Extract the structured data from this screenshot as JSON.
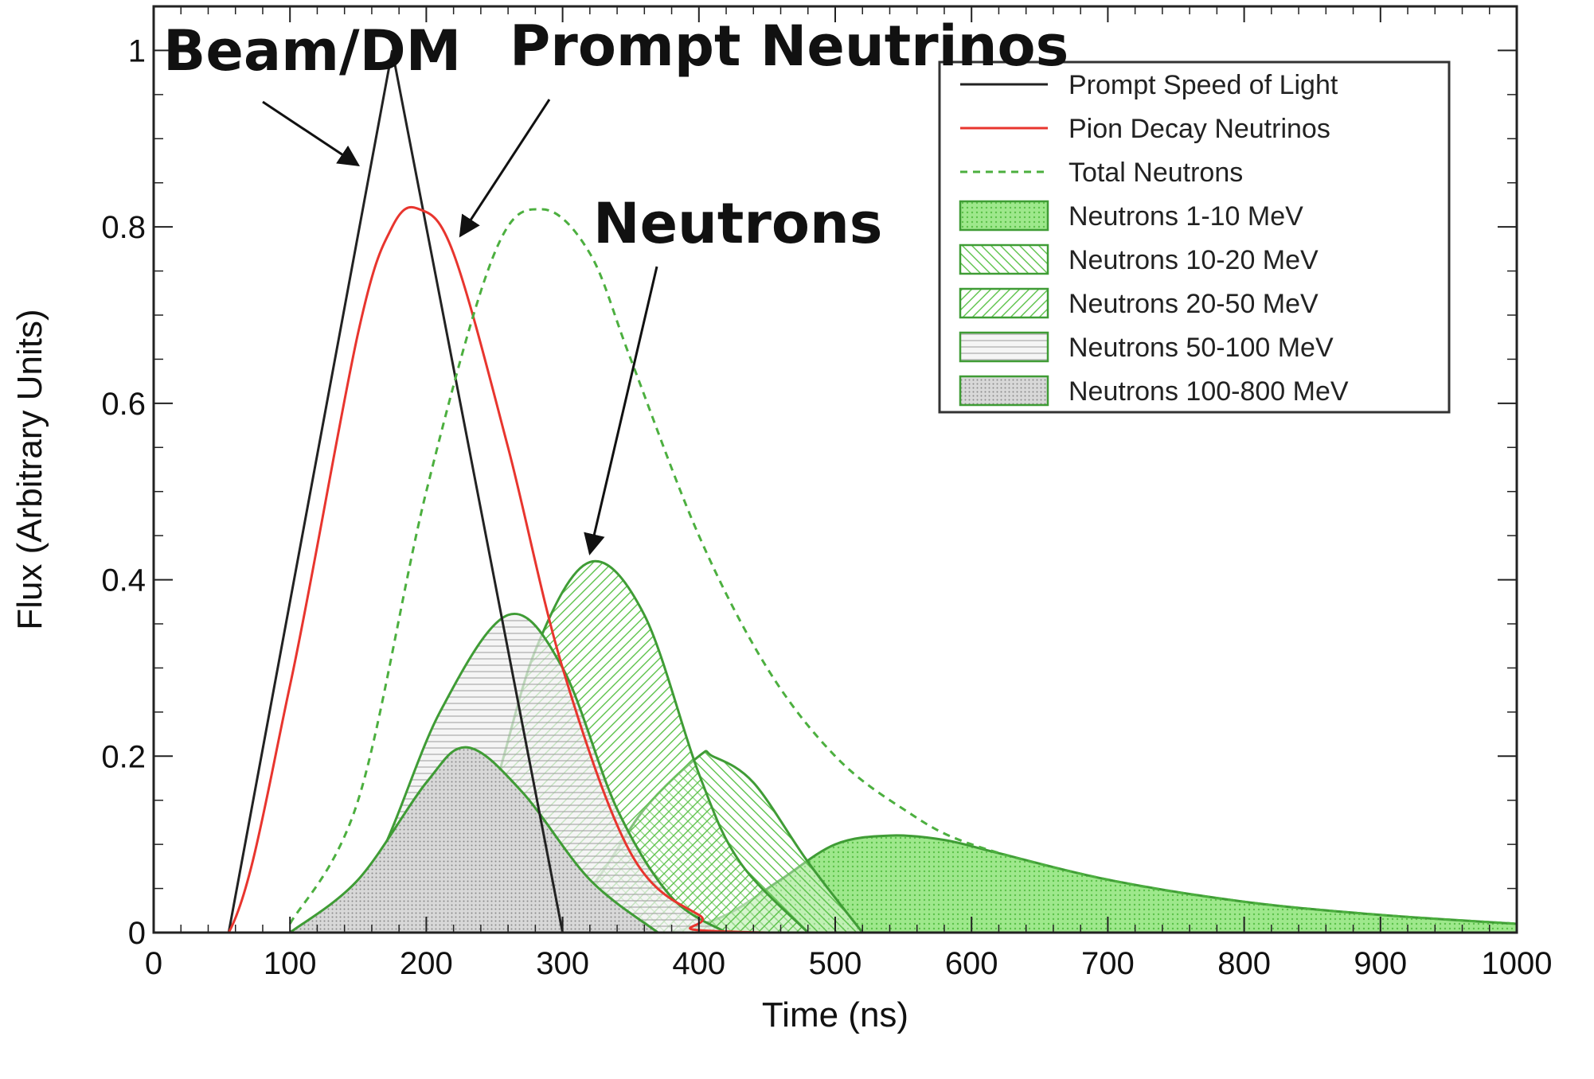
{
  "chart_data": {
    "type": "line",
    "title": "",
    "xlabel": "Time (ns)",
    "ylabel": "Flux (Arbitrary Units)",
    "xlim": [
      0,
      1000
    ],
    "ylim": [
      0,
      1.05
    ],
    "xticks": [
      0,
      100,
      200,
      300,
      400,
      500,
      600,
      700,
      800,
      900,
      1000
    ],
    "xtick_labels": [
      "0",
      "100",
      "200",
      "300",
      "400",
      "500",
      "600",
      "700",
      "800",
      "900",
      "1000"
    ],
    "yticks": [
      0,
      0.2,
      0.4,
      0.6,
      0.8,
      1
    ],
    "ytick_labels": [
      "0",
      "0.2",
      "0.4",
      "0.6",
      "0.8",
      "1"
    ],
    "grid": false,
    "legend_position": "top-right",
    "series": [
      {
        "name": "Prompt Speed of Light",
        "style": "line",
        "color": "#222222",
        "x": [
          0,
          55,
          175,
          300,
          1000
        ],
        "y": [
          0,
          0,
          1.0,
          0,
          0
        ]
      },
      {
        "name": "Pion Decay Neutrinos",
        "style": "line",
        "color": "#e8352e",
        "x": [
          0,
          55,
          100,
          150,
          175,
          195,
          220,
          260,
          300,
          350,
          400,
          450,
          1000
        ],
        "y": [
          0,
          0,
          0.28,
          0.68,
          0.8,
          0.82,
          0.77,
          0.55,
          0.3,
          0.09,
          0.02,
          0,
          0
        ]
      },
      {
        "name": "Total Neutrons",
        "style": "dashed",
        "color": "#4caf3f",
        "x": [
          100,
          150,
          200,
          250,
          285,
          320,
          350,
          400,
          450,
          500,
          550,
          600,
          700,
          800,
          900,
          1000
        ],
        "y": [
          0.01,
          0.15,
          0.5,
          0.77,
          0.82,
          0.77,
          0.65,
          0.45,
          0.3,
          0.2,
          0.14,
          0.1,
          0.06,
          0.035,
          0.02,
          0.01
        ]
      },
      {
        "name": "Neutrons 1-10 MeV",
        "style": "fill-dots",
        "color": "#4caf3f",
        "x": [
          380,
          420,
          460,
          500,
          540,
          580,
          620,
          700,
          800,
          900,
          1000
        ],
        "y": [
          0,
          0.02,
          0.06,
          0.1,
          0.11,
          0.105,
          0.09,
          0.06,
          0.035,
          0.02,
          0.01
        ]
      },
      {
        "name": "Neutrons 10-20 MeV",
        "style": "fill-hatch-back",
        "color": "#4caf3f",
        "x": [
          280,
          320,
          360,
          400,
          410,
          440,
          480,
          520
        ],
        "y": [
          0,
          0.05,
          0.14,
          0.2,
          0.2,
          0.17,
          0.08,
          0
        ]
      },
      {
        "name": "Neutrons 20-50 MeV",
        "style": "fill-hatch-forward",
        "color": "#4caf3f",
        "x": [
          190,
          240,
          280,
          320,
          360,
          400,
          430,
          480
        ],
        "y": [
          0,
          0.12,
          0.32,
          0.42,
          0.36,
          0.18,
          0.08,
          0
        ]
      },
      {
        "name": "Neutrons 50-100 MeV",
        "style": "fill-horizontal",
        "color": "#4caf3f",
        "x": [
          110,
          160,
          210,
          260,
          300,
          340,
          380,
          420
        ],
        "y": [
          0,
          0.07,
          0.25,
          0.36,
          0.3,
          0.14,
          0.04,
          0
        ]
      },
      {
        "name": "Neutrons 100-800 MeV",
        "style": "fill-gray-dots",
        "color": "#4caf3f",
        "x": [
          100,
          150,
          200,
          230,
          270,
          320,
          370
        ],
        "y": [
          0,
          0.06,
          0.17,
          0.21,
          0.16,
          0.06,
          0
        ]
      }
    ],
    "annotations": [
      {
        "text": "Beam/DM",
        "arrow_to": [
          150,
          0.87
        ]
      },
      {
        "text": "Prompt Neutrinos",
        "arrow_to": [
          225,
          0.79
        ]
      },
      {
        "text": "Neutrons",
        "arrow_to": [
          320,
          0.43
        ]
      }
    ]
  }
}
